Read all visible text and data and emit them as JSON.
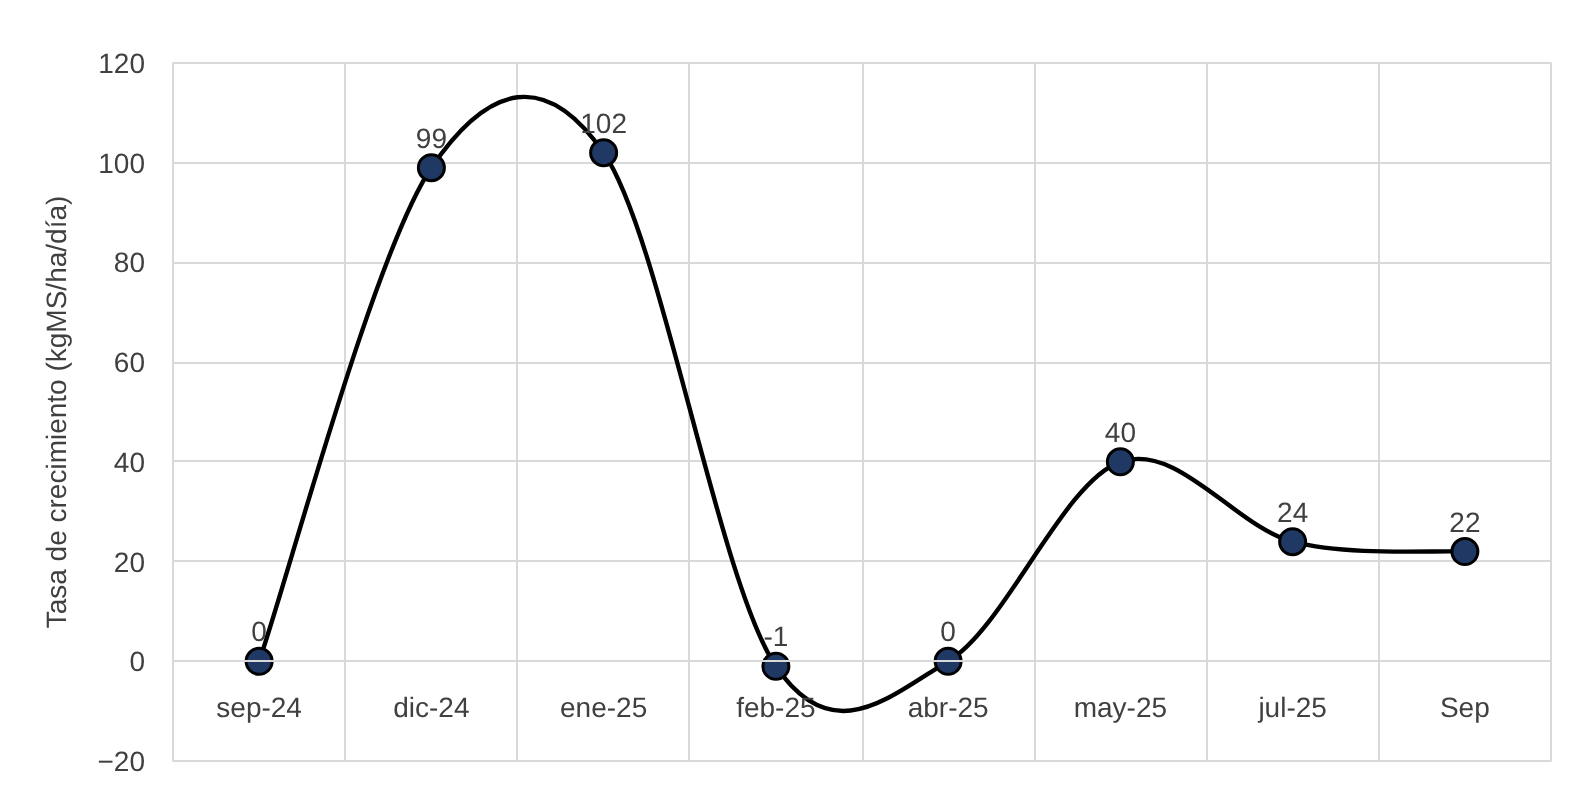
{
  "chart_data": {
    "type": "line",
    "ylabel": "Tasa de crecimiento (kgMS/ha/día)",
    "categories": [
      "sep-24",
      "dic-24",
      "ene-25",
      "feb-25",
      "abr-25",
      "may-25",
      "jul-25",
      "Sep"
    ],
    "series": [
      {
        "color": "#000000",
        "colors": [
          "#203864",
          "#203864",
          "#203864",
          "#203864",
          "#203864",
          "#203864",
          "#203864",
          "#203864"
        ],
        "values": [
          0,
          99,
          102,
          -1,
          0,
          40,
          24,
          22
        ]
      }
    ],
    "ylim": [
      -20,
      120
    ],
    "yticks": [
      -20,
      0,
      20,
      40,
      60,
      80,
      100,
      120
    ],
    "grid": true,
    "marker": "circle",
    "line_style": "solid",
    "data_labels": true
  }
}
